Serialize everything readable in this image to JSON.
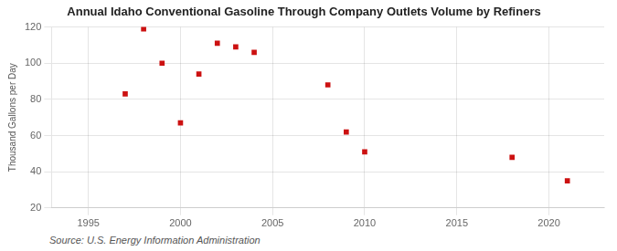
{
  "chart_data": {
    "type": "scatter",
    "title": "Annual Idaho Conventional Gasoline Through Company Outlets Volume by Refiners",
    "ylabel": "Thousand Gallons per Day",
    "source": "Source: U.S. Energy Information Administration",
    "x": [
      1997,
      1998,
      1999,
      2000,
      2001,
      2002,
      2003,
      2004,
      2008,
      2009,
      2010,
      2018,
      2021
    ],
    "values": [
      83,
      119,
      100,
      67,
      94,
      111,
      109,
      106,
      88,
      62,
      51,
      48,
      35
    ],
    "color": "#cc1111",
    "marker": "square",
    "xlim": [
      1993,
      2023
    ],
    "ylim": [
      20,
      120
    ],
    "xticks": [
      1995,
      2000,
      2005,
      2010,
      2015,
      2020
    ],
    "yticks": [
      20,
      40,
      60,
      80,
      100,
      120
    ],
    "grid": true
  }
}
